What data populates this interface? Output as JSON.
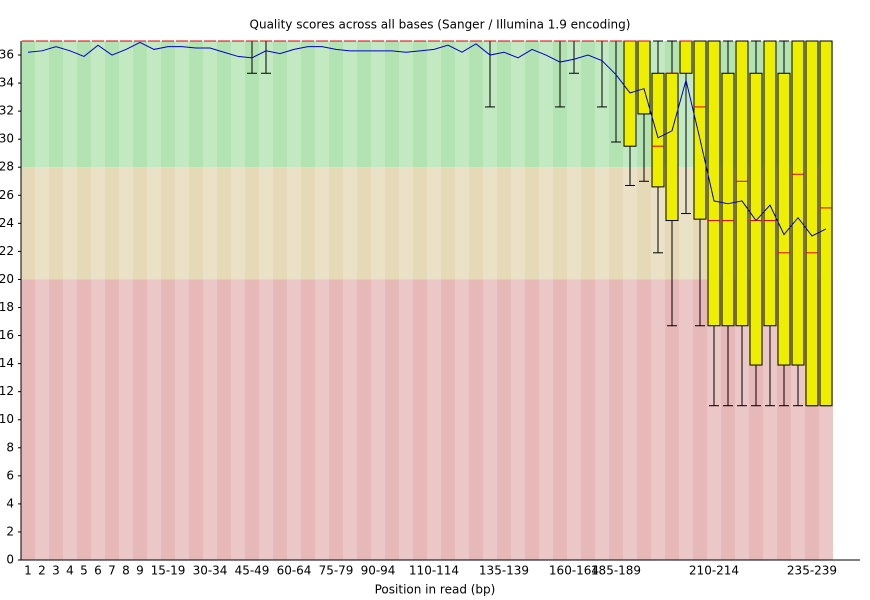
{
  "chart_data": {
    "type": "boxplot",
    "title": "Quality scores across all bases (Sanger / Illumina 1.9 encoding)",
    "x_label": "Position in read (bp)",
    "categories": [
      "1",
      "2",
      "3",
      "4",
      "5",
      "6",
      "7",
      "8",
      "9",
      null,
      "15-19",
      null,
      null,
      "30-34",
      null,
      null,
      "45-49",
      null,
      null,
      "60-64",
      null,
      null,
      "75-79",
      null,
      null,
      "90-94",
      null,
      null,
      null,
      "110-114",
      null,
      null,
      null,
      null,
      "135-139",
      null,
      null,
      null,
      null,
      "160-164",
      null,
      null,
      "185-189",
      null,
      null,
      null,
      null,
      null,
      null,
      "210-214",
      null,
      null,
      null,
      null,
      null,
      null,
      "235-239",
      null
    ],
    "mean": [
      36.2,
      36.3,
      36.6,
      36.3,
      35.9,
      36.7,
      36.0,
      36.4,
      36.9,
      36.4,
      36.6,
      36.6,
      36.5,
      36.5,
      36.2,
      35.9,
      35.8,
      36.3,
      36.1,
      36.4,
      36.6,
      36.6,
      36.4,
      36.3,
      36.3,
      36.3,
      36.3,
      36.2,
      36.3,
      36.4,
      36.7,
      36.2,
      36.8,
      36.0,
      36.2,
      35.8,
      36.4,
      36.0,
      35.5,
      35.7,
      36.0,
      35.6,
      34.6,
      33.3,
      33.6,
      30.1,
      30.6,
      34.2,
      30.0,
      25.6,
      25.4,
      25.6,
      24.2,
      25.3,
      23.2,
      24.4,
      23.1,
      23.6
    ],
    "median": [
      37,
      37,
      37,
      37,
      37,
      37,
      37,
      37,
      37,
      37,
      37,
      37,
      37,
      37,
      37,
      37,
      37,
      37,
      37,
      37,
      37,
      37,
      37,
      37,
      37,
      37,
      37,
      37,
      37,
      37,
      37,
      37,
      37,
      37,
      37,
      37,
      37,
      37,
      37,
      37,
      37,
      37,
      37,
      37,
      37,
      29.5,
      34.7,
      37,
      32.3,
      24.2,
      24.2,
      27,
      24.2,
      24.2,
      21.9,
      27.5,
      21.9,
      25.1
    ],
    "q1": [
      37,
      37,
      37,
      37,
      37,
      37,
      37,
      37,
      37,
      37,
      37,
      37,
      37,
      37,
      37,
      37,
      37,
      37,
      37,
      37,
      37,
      37,
      37,
      37,
      37,
      37,
      37,
      37,
      37,
      37,
      37,
      37,
      37,
      37,
      37,
      37,
      37,
      37,
      37,
      37,
      37,
      37,
      37,
      29.5,
      31.8,
      26.6,
      24.2,
      34.7,
      24.3,
      16.7,
      16.7,
      16.7,
      13.9,
      16.7,
      13.9,
      13.9,
      11,
      11
    ],
    "q3": [
      37,
      37,
      37,
      37,
      37,
      37,
      37,
      37,
      37,
      37,
      37,
      37,
      37,
      37,
      37,
      37,
      37,
      37,
      37,
      37,
      37,
      37,
      37,
      37,
      37,
      37,
      37,
      37,
      37,
      37,
      37,
      37,
      37,
      37,
      37,
      37,
      37,
      37,
      37,
      37,
      37,
      37,
      37,
      37,
      37,
      34.7,
      34.7,
      37,
      37,
      37,
      34.7,
      37,
      34.7,
      37,
      34.7,
      37,
      37,
      37
    ],
    "low": [
      37,
      37,
      37,
      37,
      37,
      37,
      37,
      37,
      37,
      37,
      37,
      37,
      37,
      37,
      37,
      37,
      34.7,
      34.7,
      37,
      37,
      37,
      37,
      37,
      37,
      37,
      37,
      37,
      37,
      37,
      37,
      37,
      37,
      37,
      32.3,
      37,
      37,
      37,
      37,
      32.3,
      34.7,
      37,
      32.3,
      29.8,
      26.7,
      27,
      21.9,
      16.7,
      24.7,
      16.7,
      11,
      11,
      11,
      11,
      11,
      11,
      11,
      11,
      11
    ],
    "high": [
      37,
      37,
      37,
      37,
      37,
      37,
      37,
      37,
      37,
      37,
      37,
      37,
      37,
      37,
      37,
      37,
      37,
      37,
      37,
      37,
      37,
      37,
      37,
      37,
      37,
      37,
      37,
      37,
      37,
      37,
      37,
      37,
      37,
      37,
      37,
      37,
      37,
      37,
      37,
      37,
      37,
      37,
      37,
      37,
      37,
      37,
      37,
      37,
      37,
      37,
      37,
      37,
      37,
      37,
      37,
      37,
      37,
      37
    ],
    "ylim": [
      0,
      37
    ],
    "yticks": [
      0,
      2,
      4,
      6,
      8,
      10,
      12,
      14,
      16,
      18,
      20,
      22,
      24,
      26,
      28,
      30,
      32,
      34,
      36
    ],
    "bands": [
      {
        "from": 28,
        "to": 37,
        "color": "#b3e3b3"
      },
      {
        "from": 20,
        "to": 28,
        "color": "#e6d9b8"
      },
      {
        "from": 0,
        "to": 20,
        "color": "#e6b8b8"
      }
    ],
    "box_color": "#eeee00",
    "median_color": "#dd0000",
    "mean_color": "#0000cc"
  }
}
